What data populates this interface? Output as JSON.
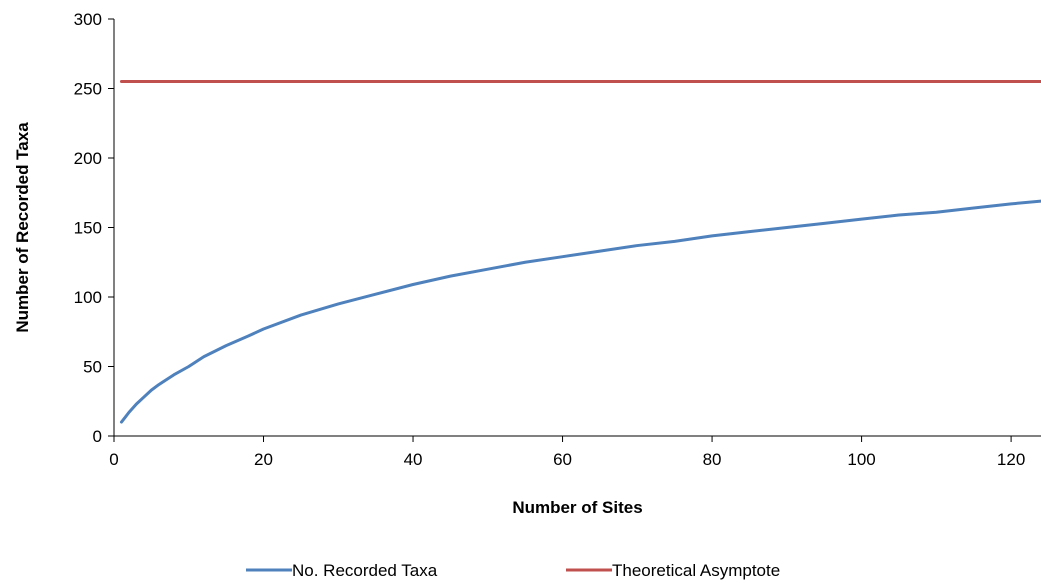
{
  "chart_data": {
    "type": "line",
    "title": "",
    "xlabel": "Number of Sites",
    "ylabel": "Number of Recorded Taxa",
    "xlim": [
      0,
      124
    ],
    "ylim": [
      0,
      300
    ],
    "x_ticks": [
      0,
      20,
      40,
      60,
      80,
      100,
      120
    ],
    "y_ticks": [
      0,
      50,
      100,
      150,
      200,
      250,
      300
    ],
    "grid": false,
    "legend_position": "bottom",
    "series": [
      {
        "name": "No. Recorded Taxa",
        "color": "#4F81BD",
        "x": [
          1,
          2,
          3,
          4,
          5,
          6,
          8,
          10,
          12,
          15,
          18,
          20,
          25,
          30,
          35,
          40,
          45,
          50,
          55,
          60,
          65,
          70,
          75,
          80,
          85,
          90,
          95,
          100,
          105,
          110,
          115,
          120,
          124
        ],
        "y": [
          10,
          17,
          23,
          28,
          33,
          37,
          44,
          50,
          57,
          65,
          72,
          77,
          87,
          95,
          102,
          109,
          115,
          120,
          125,
          129,
          133,
          137,
          140,
          144,
          147,
          150,
          153,
          156,
          159,
          161,
          164,
          167,
          169
        ]
      },
      {
        "name": "Theoretical Asymptote",
        "color": "#C0504D",
        "x": [
          1,
          124
        ],
        "y": [
          255,
          255
        ]
      }
    ]
  }
}
